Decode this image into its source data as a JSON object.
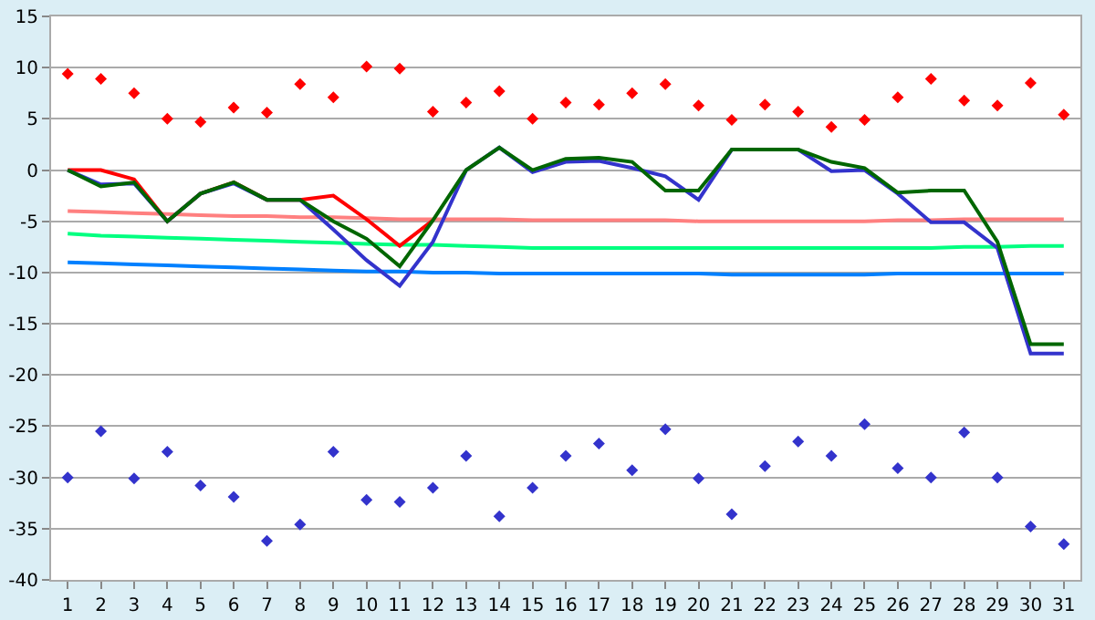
{
  "chart_data": {
    "type": "line",
    "x": [
      1,
      2,
      3,
      4,
      5,
      6,
      7,
      8,
      9,
      10,
      11,
      12,
      13,
      14,
      15,
      16,
      17,
      18,
      19,
      20,
      21,
      22,
      23,
      24,
      25,
      26,
      27,
      28,
      29,
      30,
      31
    ],
    "xlim": [
      0.5,
      31.5
    ],
    "xticks": [
      1,
      2,
      3,
      4,
      5,
      6,
      7,
      8,
      9,
      10,
      11,
      12,
      13,
      14,
      15,
      16,
      17,
      18,
      19,
      20,
      21,
      22,
      23,
      24,
      25,
      26,
      27,
      28,
      29,
      30,
      31
    ],
    "ylim": [
      -40,
      15
    ],
    "yticks": [
      -40,
      -35,
      -30,
      -25,
      -20,
      -15,
      -10,
      -5,
      0,
      5,
      10,
      15
    ],
    "grid": "y",
    "line_style": "solid",
    "series": [
      {
        "type": "line",
        "color": "#ff8080",
        "values": [
          -4.0,
          -4.1,
          -4.2,
          -4.3,
          -4.4,
          -4.5,
          -4.5,
          -4.6,
          -4.6,
          -4.7,
          -4.8,
          -4.8,
          -4.8,
          -4.8,
          -4.9,
          -4.9,
          -4.9,
          -4.9,
          -4.9,
          -5.0,
          -5.0,
          -5.0,
          -5.0,
          -5.0,
          -5.0,
          -4.9,
          -4.9,
          -4.8,
          -4.8,
          -4.8,
          -4.8
        ]
      },
      {
        "type": "line",
        "color": "#00ff80",
        "values": [
          -6.2,
          -6.4,
          -6.5,
          -6.6,
          -6.7,
          -6.8,
          -6.9,
          -7.0,
          -7.1,
          -7.2,
          -7.3,
          -7.3,
          -7.4,
          -7.5,
          -7.6,
          -7.6,
          -7.6,
          -7.6,
          -7.6,
          -7.6,
          -7.6,
          -7.6,
          -7.6,
          -7.6,
          -7.6,
          -7.6,
          -7.6,
          -7.5,
          -7.5,
          -7.4,
          -7.4
        ]
      },
      {
        "type": "line",
        "color": "#0080ff",
        "values": [
          -9.0,
          -9.1,
          -9.2,
          -9.3,
          -9.4,
          -9.5,
          -9.6,
          -9.7,
          -9.8,
          -9.9,
          -9.9,
          -10.0,
          -10.0,
          -10.1,
          -10.1,
          -10.1,
          -10.1,
          -10.1,
          -10.1,
          -10.1,
          -10.2,
          -10.2,
          -10.2,
          -10.2,
          -10.2,
          -10.1,
          -10.1,
          -10.1,
          -10.1,
          -10.1,
          -10.1
        ]
      },
      {
        "type": "line",
        "color": "#ff0000",
        "values": [
          0,
          0,
          -0.9,
          -5,
          -2.3,
          -1.2,
          -2.9,
          -2.9,
          -2.5,
          -4.8,
          -7.4,
          -4.9,
          null,
          null,
          null,
          null,
          null,
          null,
          null,
          null,
          null,
          null,
          null,
          null,
          null,
          null,
          null,
          null,
          null,
          null,
          null
        ]
      },
      {
        "type": "line",
        "color": "#3333cc",
        "values": [
          0,
          -1.4,
          -1.3,
          -5,
          -2.3,
          -1.3,
          -2.9,
          -2.9,
          -5.8,
          -8.8,
          -11.3,
          -7,
          0,
          2.2,
          -0.2,
          0.8,
          0.9,
          0.2,
          -0.6,
          -2.9,
          2.0,
          2.0,
          2.0,
          -0.1,
          0,
          -2.3,
          -5.1,
          -5.1,
          -7.6,
          -17.9,
          -17.9
        ]
      },
      {
        "type": "line",
        "color": "#006600",
        "values": [
          0,
          -1.6,
          -1.2,
          -5,
          -2.3,
          -1.2,
          -2.9,
          -2.9,
          -5,
          -6.7,
          -9.4,
          -4.9,
          0,
          2.2,
          0,
          1.1,
          1.2,
          0.8,
          -2.0,
          -2.0,
          2.0,
          2.0,
          2.0,
          0.8,
          0.2,
          -2.2,
          -2.0,
          -2.0,
          -7,
          -17.0,
          -17.0
        ]
      },
      {
        "type": "scatter",
        "marker": "diamond",
        "color": "#ff0000",
        "values": [
          9.4,
          8.9,
          7.5,
          5.0,
          4.7,
          6.1,
          5.6,
          8.4,
          7.1,
          10.1,
          9.9,
          5.7,
          6.6,
          7.7,
          5.0,
          6.6,
          6.4,
          7.5,
          8.4,
          6.3,
          4.9,
          6.4,
          5.7,
          4.2,
          4.9,
          7.1,
          8.9,
          6.8,
          6.3,
          8.5,
          5.4
        ]
      },
      {
        "type": "scatter",
        "marker": "diamond",
        "color": "#3333cc",
        "values": [
          -30.0,
          -25.5,
          -30.1,
          -27.5,
          -30.8,
          -31.9,
          -36.2,
          -34.6,
          -27.5,
          -32.2,
          -32.4,
          -31.0,
          -27.9,
          -33.8,
          -31.0,
          -27.9,
          -26.7,
          -29.3,
          -25.3,
          -30.1,
          -33.6,
          -28.9,
          -26.5,
          -27.9,
          -24.8,
          -29.1,
          -30.0,
          -25.6,
          -30.0,
          -34.8,
          -36.5
        ]
      }
    ]
  }
}
